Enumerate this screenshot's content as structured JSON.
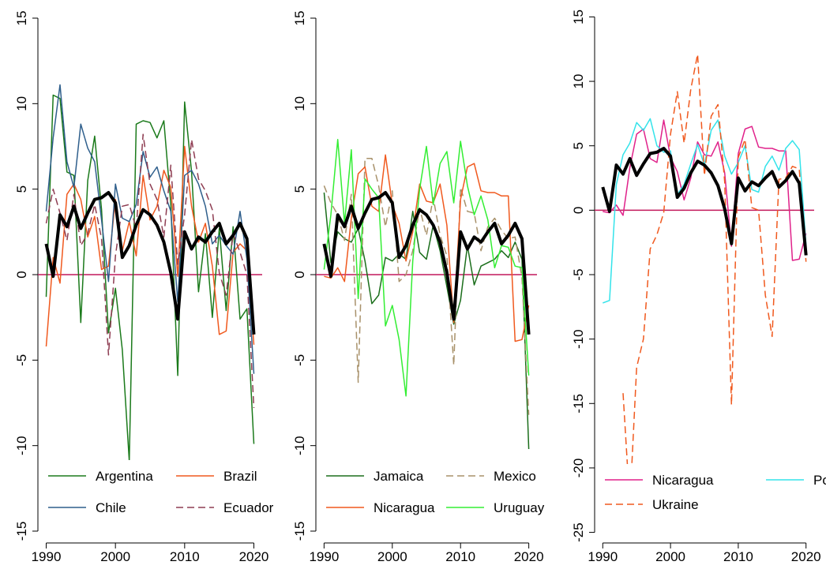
{
  "chart_data": [
    {
      "type": "line",
      "hline": 0,
      "hline_color": "#c2185b",
      "x": [
        1990,
        1991,
        1992,
        1993,
        1994,
        1995,
        1996,
        1997,
        1998,
        1999,
        2000,
        2001,
        2002,
        2003,
        2004,
        2005,
        2006,
        2007,
        2008,
        2009,
        2010,
        2011,
        2012,
        2013,
        2014,
        2015,
        2016,
        2017,
        2018,
        2019,
        2020
      ],
      "xlim": [
        1988.8,
        2021.2
      ],
      "xticks": [
        1990,
        2000,
        2010,
        2020
      ],
      "ylim": [
        -15.6,
        15.6
      ],
      "yticks": [
        -15,
        -10,
        -5,
        0,
        5,
        10,
        15
      ],
      "series": [
        {
          "name": "Argentina",
          "color": "#1b7a1b",
          "dash": false,
          "values": [
            -1.3,
            10.5,
            10.3,
            6.0,
            5.8,
            -2.8,
            5.5,
            8.1,
            3.8,
            -3.4,
            -0.8,
            -4.4,
            -10.9,
            8.8,
            9.0,
            8.9,
            8.0,
            9.0,
            4.1,
            -5.9,
            10.1,
            6.0,
            -1.0,
            2.4,
            -2.5,
            2.7,
            -2.1,
            2.8,
            -2.6,
            -2.0,
            -9.9
          ]
        },
        {
          "name": "Brazil",
          "color": "#f0591e",
          "dash": false,
          "values": [
            -4.2,
            1.0,
            -0.5,
            4.7,
            5.3,
            4.4,
            2.2,
            3.4,
            0.3,
            0.5,
            4.4,
            1.4,
            3.1,
            1.1,
            5.8,
            3.2,
            4.0,
            6.1,
            5.1,
            -0.1,
            7.5,
            4.0,
            1.9,
            3.0,
            0.5,
            -3.5,
            -3.3,
            1.3,
            1.8,
            1.4,
            -4.1
          ]
        },
        {
          "name": "Chile",
          "color": "#2f5f8c",
          "dash": false,
          "values": [
            3.7,
            8.0,
            11.1,
            6.6,
            5.1,
            8.8,
            7.4,
            6.6,
            3.2,
            -0.4,
            5.3,
            3.3,
            3.1,
            4.1,
            7.2,
            5.7,
            6.3,
            4.9,
            3.7,
            -1.6,
            5.8,
            6.1,
            5.3,
            4.0,
            1.8,
            2.3,
            1.7,
            1.2,
            3.7,
            0.9,
            -5.8
          ]
        },
        {
          "name": "Ecuador",
          "color": "#8e3d52",
          "dash": true,
          "values": [
            3.0,
            5.0,
            3.6,
            2.0,
            4.7,
            1.7,
            2.4,
            4.1,
            2.1,
            -4.7,
            1.1,
            4.0,
            4.1,
            2.7,
            8.2,
            5.3,
            4.4,
            2.2,
            6.4,
            0.6,
            3.5,
            7.9,
            5.6,
            4.9,
            3.8,
            0.1,
            -1.2,
            2.4,
            1.3,
            0.0,
            -7.8
          ]
        },
        {
          "color": "#000000",
          "dash": false,
          "width": 4,
          "values": [
            1.8,
            -0.1,
            3.5,
            2.8,
            4.0,
            2.7,
            3.6,
            4.4,
            4.5,
            4.8,
            4.2,
            1.0,
            1.7,
            2.9,
            3.8,
            3.5,
            2.9,
            1.9,
            0.1,
            -2.6,
            2.5,
            1.5,
            2.2,
            1.9,
            2.5,
            3.0,
            1.8,
            2.3,
            3.0,
            2.1,
            -3.5
          ]
        }
      ]
    },
    {
      "type": "line",
      "hline": 0,
      "hline_color": "#c2185b",
      "x": [
        1990,
        1991,
        1992,
        1993,
        1994,
        1995,
        1996,
        1997,
        1998,
        1999,
        2000,
        2001,
        2002,
        2003,
        2004,
        2005,
        2006,
        2007,
        2008,
        2009,
        2010,
        2011,
        2012,
        2013,
        2014,
        2015,
        2016,
        2017,
        2018,
        2019,
        2020
      ],
      "xlim": [
        1988.8,
        2021.2
      ],
      "xticks": [
        1990,
        2000,
        2010,
        2020
      ],
      "ylim": [
        -15.6,
        15.6
      ],
      "yticks": [
        -15,
        -10,
        -5,
        0,
        5,
        10,
        15
      ],
      "series": [
        {
          "name": "Jamaica",
          "color": "#1b6e1b",
          "dash": false,
          "values": [
            4.8,
            0.7,
            2.5,
            2.1,
            1.9,
            2.7,
            0.8,
            -1.7,
            -1.2,
            1.0,
            0.8,
            1.2,
            0.9,
            3.7,
            1.3,
            0.9,
            2.9,
            1.4,
            -0.7,
            -2.9,
            -1.5,
            1.7,
            -0.6,
            0.5,
            0.7,
            0.9,
            1.4,
            1.0,
            1.9,
            0.9,
            -10.2
          ]
        },
        {
          "name": "Mexico",
          "color": "#a8916a",
          "dash": true,
          "values": [
            5.2,
            4.2,
            3.5,
            2.0,
            4.7,
            -6.3,
            6.8,
            6.8,
            5.2,
            2.8,
            4.9,
            -0.4,
            0.0,
            1.4,
            3.9,
            2.3,
            4.5,
            2.3,
            1.1,
            -5.3,
            5.1,
            3.7,
            3.6,
            1.4,
            2.8,
            3.3,
            2.6,
            2.1,
            2.2,
            -0.2,
            -8.2
          ]
        },
        {
          "name": "Nicaragua",
          "color": "#f0591e",
          "dash": false,
          "values": [
            -0.1,
            -0.2,
            0.4,
            -0.4,
            3.3,
            5.9,
            6.3,
            4.0,
            3.7,
            7.0,
            4.1,
            3.0,
            0.8,
            2.5,
            5.3,
            4.3,
            4.2,
            5.3,
            2.9,
            -2.8,
            4.4,
            6.3,
            6.5,
            4.9,
            4.8,
            4.8,
            4.6,
            4.6,
            -3.9,
            -3.8,
            -1.8
          ]
        },
        {
          "name": "Uruguay",
          "color": "#33ee33",
          "dash": false,
          "values": [
            0.3,
            3.5,
            7.9,
            3.0,
            7.3,
            -1.4,
            5.6,
            5.0,
            4.5,
            -3.0,
            -1.8,
            -3.8,
            -7.1,
            0.8,
            5.0,
            7.5,
            4.1,
            6.5,
            7.2,
            4.2,
            7.8,
            5.2,
            3.5,
            4.6,
            3.2,
            0.4,
            1.7,
            1.6,
            0.5,
            0.4,
            -5.9
          ]
        },
        {
          "color": "#000000",
          "dash": false,
          "width": 4,
          "values": [
            1.8,
            -0.1,
            3.5,
            2.8,
            4.0,
            2.7,
            3.6,
            4.4,
            4.5,
            4.8,
            4.2,
            1.0,
            1.7,
            2.9,
            3.8,
            3.5,
            2.9,
            1.9,
            0.1,
            -2.6,
            2.5,
            1.5,
            2.2,
            1.9,
            2.5,
            3.0,
            1.8,
            2.3,
            3.0,
            2.1,
            -3.5
          ]
        }
      ]
    },
    {
      "type": "line",
      "hline": 0,
      "hline_color": "#c2185b",
      "x": [
        1990,
        1991,
        1992,
        1993,
        1994,
        1995,
        1996,
        1997,
        1998,
        1999,
        2000,
        2001,
        2002,
        2003,
        2004,
        2005,
        2006,
        2007,
        2008,
        2009,
        2010,
        2011,
        2012,
        2013,
        2014,
        2015,
        2016,
        2017,
        2018,
        2019,
        2020
      ],
      "xlim": [
        1988.8,
        2021.2
      ],
      "xticks": [
        1990,
        2000,
        2010,
        2020
      ],
      "ylim": [
        -25.7,
        15.7
      ],
      "yticks": [
        -25,
        -20,
        -15,
        -10,
        -5,
        0,
        5,
        10,
        15
      ],
      "series": [
        {
          "name": "Nicaragua",
          "color": "#e0218a",
          "dash": false,
          "values": [
            -0.1,
            -0.2,
            0.4,
            -0.4,
            3.3,
            5.9,
            6.3,
            4.0,
            3.7,
            7.0,
            4.1,
            3.0,
            0.8,
            2.5,
            5.3,
            4.3,
            4.2,
            5.3,
            2.9,
            -2.8,
            4.4,
            6.3,
            6.5,
            4.9,
            4.8,
            4.8,
            4.6,
            4.6,
            -3.9,
            -3.8,
            -1.8
          ]
        },
        {
          "name": "Poland",
          "color": "#33e3ea",
          "dash": false,
          "values": [
            -7.2,
            -7.0,
            2.0,
            4.3,
            5.2,
            6.8,
            6.2,
            7.1,
            5.0,
            4.5,
            4.6,
            1.2,
            2.0,
            3.6,
            5.1,
            3.5,
            6.2,
            7.0,
            4.2,
            2.8,
            3.7,
            5.0,
            1.6,
            1.4,
            3.4,
            4.2,
            3.1,
            4.8,
            5.4,
            4.7,
            -2.7
          ]
        },
        {
          "name": "Ukraine",
          "color": "#f0591e",
          "dash": true,
          "values": [
            null,
            null,
            null,
            -14.2,
            -22.9,
            -12.2,
            -10.0,
            -3.0,
            -1.9,
            -0.2,
            5.9,
            9.2,
            5.2,
            9.4,
            12.1,
            2.7,
            7.3,
            8.2,
            2.2,
            -15.1,
            4.1,
            5.5,
            0.2,
            0.0,
            -6.6,
            -9.8,
            2.4,
            2.5,
            3.4,
            3.2,
            -4.0
          ]
        },
        {
          "color": "#000000",
          "dash": false,
          "width": 4,
          "values": [
            1.8,
            -0.1,
            3.5,
            2.8,
            4.0,
            2.7,
            3.6,
            4.4,
            4.5,
            4.8,
            4.2,
            1.0,
            1.7,
            2.9,
            3.8,
            3.5,
            2.9,
            1.9,
            0.1,
            -2.6,
            2.5,
            1.5,
            2.2,
            1.9,
            2.5,
            3.0,
            1.8,
            2.3,
            3.0,
            2.1,
            -3.5
          ]
        }
      ]
    }
  ]
}
